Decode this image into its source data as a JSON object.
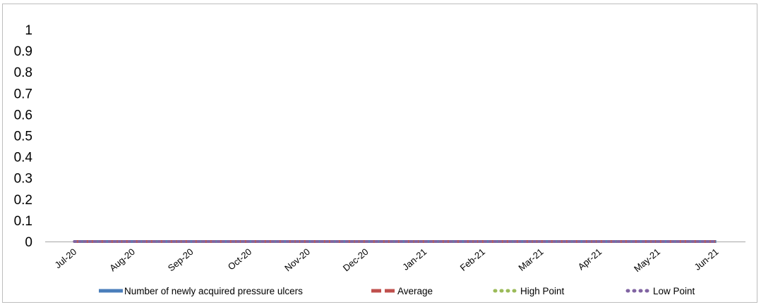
{
  "chart_data": {
    "type": "line",
    "title": "",
    "xlabel": "",
    "ylabel": "",
    "x": [
      "Jul-20",
      "Aug-20",
      "Sep-20",
      "Oct-20",
      "Nov-20",
      "Dec-20",
      "Jan-21",
      "Feb-21",
      "Mar-21",
      "Apr-21",
      "May-21",
      "Jun-21"
    ],
    "ylim": [
      0,
      1
    ],
    "yticks": [
      "0",
      "0.1",
      "0.2",
      "0.3",
      "0.4",
      "0.5",
      "0.6",
      "0.7",
      "0.8",
      "0.9",
      "1"
    ],
    "grid": false,
    "legend_position": "bottom",
    "series": [
      {
        "name": "Number of newly acquired pressure ulcers",
        "values": [
          0,
          0,
          0,
          0,
          0,
          0,
          0,
          0,
          0,
          0,
          0,
          0
        ],
        "color": "#4a7ebb",
        "style": "solid"
      },
      {
        "name": "Average",
        "values": [
          0,
          0,
          0,
          0,
          0,
          0,
          0,
          0,
          0,
          0,
          0,
          0
        ],
        "color": "#c0504d",
        "style": "dash"
      },
      {
        "name": "High Point",
        "values": [
          0,
          0,
          0,
          0,
          0,
          0,
          0,
          0,
          0,
          0,
          0,
          0
        ],
        "color": "#9bbb59",
        "style": "dot"
      },
      {
        "name": "Low Point",
        "values": [
          0,
          0,
          0,
          0,
          0,
          0,
          0,
          0,
          0,
          0,
          0,
          0
        ],
        "color": "#8064a2",
        "style": "dot"
      }
    ]
  }
}
